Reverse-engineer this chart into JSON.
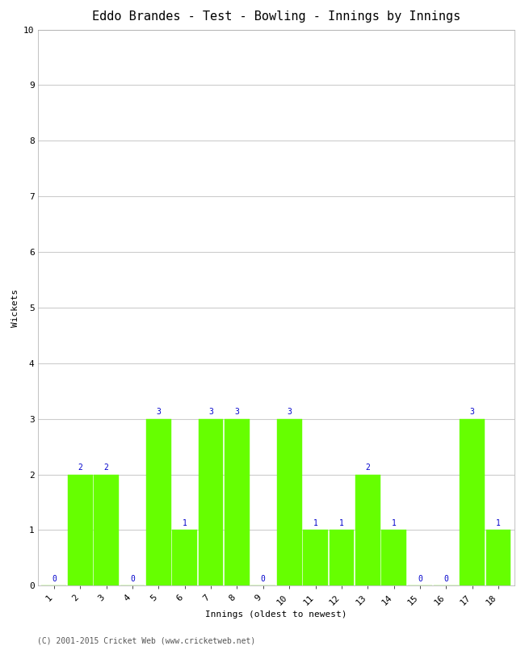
{
  "title": "Eddo Brandes - Test - Bowling - Innings by Innings",
  "xlabel": "Innings (oldest to newest)",
  "ylabel": "Wickets",
  "categories": [
    "1",
    "2",
    "3",
    "4",
    "5",
    "6",
    "7",
    "8",
    "9",
    "10",
    "11",
    "12",
    "13",
    "14",
    "15",
    "16",
    "17",
    "18"
  ],
  "values": [
    0,
    2,
    2,
    0,
    3,
    1,
    3,
    3,
    0,
    3,
    1,
    1,
    2,
    1,
    0,
    0,
    3,
    1
  ],
  "bar_color": "#66ff00",
  "bar_edge_color": "#66ff00",
  "label_color": "#0000cc",
  "ylim": [
    0,
    10
  ],
  "yticks": [
    0,
    1,
    2,
    3,
    4,
    5,
    6,
    7,
    8,
    9,
    10
  ],
  "title_fontsize": 11,
  "axis_label_fontsize": 8,
  "tick_fontsize": 8,
  "value_label_fontsize": 7,
  "background_color": "#ffffff",
  "grid_color": "#cccccc",
  "copyright": "(C) 2001-2015 Cricket Web (www.cricketweb.net)",
  "copyright_fontsize": 7
}
